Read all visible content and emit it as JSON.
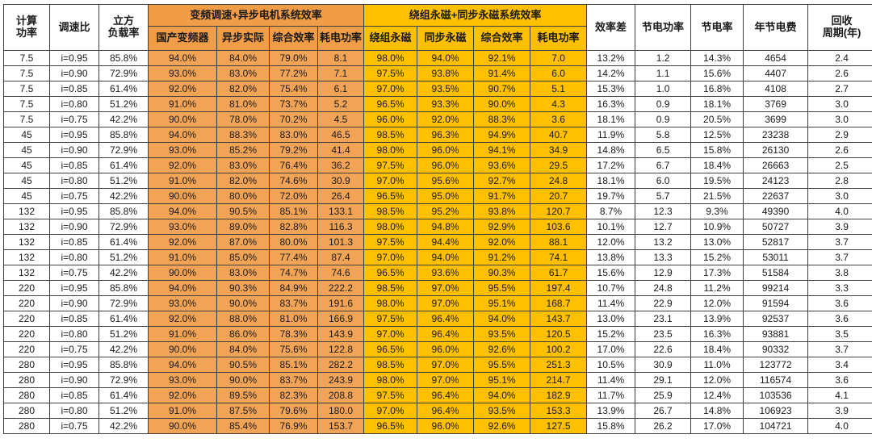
{
  "chart_data": {
    "type": "table",
    "headers": {
      "power": "计算\n功率",
      "ratio": "调速比",
      "load": "立方\n负载率",
      "group_async": "变频调速+异步电机系统效率",
      "sub_async": [
        "国产变频器",
        "异步实际",
        "综合效率",
        "耗电功率"
      ],
      "group_pm": "绕组永磁+同步永磁系统效率",
      "sub_pm": [
        "绕组永磁",
        "同步永磁",
        "综合效率",
        "耗电功率"
      ],
      "eff_diff": "效率差",
      "save_power": "节电功率",
      "save_rate": "节电率",
      "annual_saving": "年节电费",
      "payback": "回收\n周期(年)"
    },
    "rows": [
      [
        "7.5",
        "i=0.95",
        "85.8%",
        "94.0%",
        "84.0%",
        "79.0%",
        "8.1",
        "98.0%",
        "94.0%",
        "92.1%",
        "7.0",
        "13.2%",
        "1.2",
        "14.3%",
        "4654",
        "2.4"
      ],
      [
        "7.5",
        "i=0.90",
        "72.9%",
        "93.0%",
        "83.0%",
        "77.2%",
        "7.1",
        "97.5%",
        "93.8%",
        "91.4%",
        "6.0",
        "14.2%",
        "1.1",
        "15.6%",
        "4407",
        "2.6"
      ],
      [
        "7.5",
        "i=0.85",
        "61.4%",
        "92.0%",
        "82.0%",
        "75.4%",
        "6.1",
        "97.0%",
        "93.5%",
        "90.7%",
        "5.1",
        "15.3%",
        "1.0",
        "16.8%",
        "4108",
        "2.7"
      ],
      [
        "7.5",
        "i=0.80",
        "51.2%",
        "91.0%",
        "81.0%",
        "73.7%",
        "5.2",
        "96.5%",
        "93.3%",
        "90.0%",
        "4.3",
        "16.3%",
        "0.9",
        "18.1%",
        "3769",
        "3.0"
      ],
      [
        "7.5",
        "i=0.75",
        "42.2%",
        "90.0%",
        "78.0%",
        "70.2%",
        "4.5",
        "96.0%",
        "92.0%",
        "88.3%",
        "3.6",
        "18.1%",
        "0.9",
        "20.5%",
        "3699",
        "3.0"
      ],
      [
        "45",
        "i=0.95",
        "85.8%",
        "94.0%",
        "88.3%",
        "83.0%",
        "46.5",
        "98.5%",
        "96.3%",
        "94.9%",
        "40.7",
        "11.9%",
        "5.8",
        "12.5%",
        "23238",
        "2.9"
      ],
      [
        "45",
        "i=0.90",
        "72.9%",
        "93.0%",
        "85.2%",
        "79.2%",
        "41.4",
        "98.0%",
        "96.0%",
        "94.1%",
        "34.9",
        "14.8%",
        "6.5",
        "15.8%",
        "26130",
        "2.6"
      ],
      [
        "45",
        "i=0.85",
        "61.4%",
        "92.0%",
        "83.0%",
        "76.4%",
        "36.2",
        "97.5%",
        "96.0%",
        "93.6%",
        "29.5",
        "17.2%",
        "6.7",
        "18.4%",
        "26663",
        "2.5"
      ],
      [
        "45",
        "i=0.80",
        "51.2%",
        "91.0%",
        "82.0%",
        "74.6%",
        "30.9",
        "97.0%",
        "95.6%",
        "92.7%",
        "24.8",
        "18.1%",
        "6.0",
        "19.5%",
        "24123",
        "2.8"
      ],
      [
        "45",
        "i=0.75",
        "42.2%",
        "90.0%",
        "80.0%",
        "72.0%",
        "26.4",
        "96.5%",
        "95.0%",
        "91.7%",
        "20.7",
        "19.7%",
        "5.7",
        "21.5%",
        "22637",
        "3.0"
      ],
      [
        "132",
        "i=0.95",
        "85.8%",
        "94.0%",
        "90.5%",
        "85.1%",
        "133.1",
        "98.5%",
        "95.2%",
        "93.8%",
        "120.7",
        "8.7%",
        "12.3",
        "9.3%",
        "49390",
        "4.0"
      ],
      [
        "132",
        "i=0.90",
        "72.9%",
        "93.0%",
        "89.0%",
        "82.8%",
        "116.3",
        "98.0%",
        "94.8%",
        "92.9%",
        "103.6",
        "10.1%",
        "12.7",
        "10.9%",
        "50727",
        "3.9"
      ],
      [
        "132",
        "i=0.85",
        "61.4%",
        "92.0%",
        "87.0%",
        "80.0%",
        "101.3",
        "97.5%",
        "94.4%",
        "92.0%",
        "88.1",
        "12.0%",
        "13.2",
        "13.0%",
        "52817",
        "3.7"
      ],
      [
        "132",
        "i=0.80",
        "51.2%",
        "91.0%",
        "85.0%",
        "77.4%",
        "87.4",
        "97.0%",
        "94.0%",
        "91.2%",
        "74.1",
        "13.8%",
        "13.3",
        "15.2%",
        "53011",
        "3.7"
      ],
      [
        "132",
        "i=0.75",
        "42.2%",
        "90.0%",
        "83.0%",
        "74.7%",
        "74.6",
        "96.5%",
        "93.6%",
        "90.3%",
        "61.7",
        "15.6%",
        "12.9",
        "17.3%",
        "51584",
        "3.8"
      ],
      [
        "220",
        "i=0.95",
        "85.8%",
        "94.0%",
        "90.3%",
        "84.9%",
        "222.2",
        "98.5%",
        "97.0%",
        "95.5%",
        "197.4",
        "10.7%",
        "24.8",
        "11.2%",
        "99214",
        "3.3"
      ],
      [
        "220",
        "i=0.90",
        "72.9%",
        "93.0%",
        "90.0%",
        "83.7%",
        "191.6",
        "98.0%",
        "97.0%",
        "95.1%",
        "168.7",
        "11.4%",
        "22.9",
        "12.0%",
        "91594",
        "3.6"
      ],
      [
        "220",
        "i=0.85",
        "61.4%",
        "92.0%",
        "88.0%",
        "81.0%",
        "166.9",
        "97.5%",
        "96.4%",
        "94.0%",
        "143.7",
        "13.0%",
        "23.1",
        "13.9%",
        "92537",
        "3.6"
      ],
      [
        "220",
        "i=0.80",
        "51.2%",
        "91.0%",
        "86.0%",
        "78.3%",
        "143.9",
        "97.0%",
        "96.4%",
        "93.5%",
        "120.5",
        "15.2%",
        "23.5",
        "16.3%",
        "93881",
        "3.5"
      ],
      [
        "220",
        "i=0.75",
        "42.2%",
        "90.0%",
        "84.0%",
        "75.6%",
        "122.8",
        "96.5%",
        "96.0%",
        "92.6%",
        "100.2",
        "17.0%",
        "22.6",
        "18.4%",
        "90332",
        "3.7"
      ],
      [
        "280",
        "i=0.95",
        "85.8%",
        "94.0%",
        "90.5%",
        "85.1%",
        "282.2",
        "98.5%",
        "97.0%",
        "95.5%",
        "251.3",
        "10.5%",
        "30.9",
        "11.0%",
        "123772",
        "3.4"
      ],
      [
        "280",
        "i=0.90",
        "72.9%",
        "93.0%",
        "90.0%",
        "83.7%",
        "243.9",
        "98.0%",
        "97.0%",
        "95.1%",
        "214.7",
        "11.4%",
        "29.1",
        "12.0%",
        "116574",
        "3.6"
      ],
      [
        "280",
        "i=0.85",
        "61.4%",
        "92.0%",
        "89.5%",
        "82.3%",
        "208.8",
        "97.5%",
        "96.4%",
        "94.0%",
        "182.9",
        "11.7%",
        "25.9",
        "12.4%",
        "103536",
        "4.1"
      ],
      [
        "280",
        "i=0.80",
        "51.2%",
        "91.0%",
        "87.5%",
        "79.6%",
        "180.0",
        "97.0%",
        "96.4%",
        "93.5%",
        "153.3",
        "13.9%",
        "26.7",
        "14.8%",
        "106923",
        "3.9"
      ],
      [
        "280",
        "i=0.75",
        "42.2%",
        "90.0%",
        "85.4%",
        "76.9%",
        "153.7",
        "96.5%",
        "96.0%",
        "92.6%",
        "127.5",
        "15.8%",
        "26.2",
        "17.0%",
        "104721",
        "4.0"
      ]
    ]
  },
  "colors": {
    "orange_header": "#F19C47",
    "orange_cell": "#F2A456",
    "yellow": "#FFC000",
    "border": "#3F3F3F",
    "text": "#1A1A1A"
  }
}
